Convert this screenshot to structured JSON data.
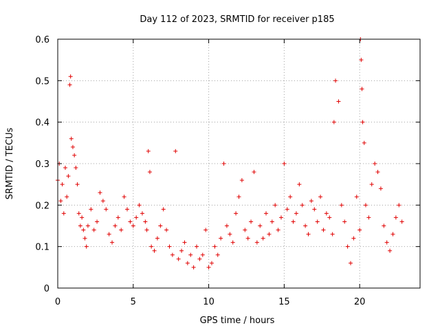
{
  "chart_data": {
    "type": "scatter",
    "title": "Day 112 of 2023, SRMTID for receiver p185",
    "xlabel": "GPS time / hours",
    "ylabel": "SRMTID / TECUs",
    "xlim": [
      0,
      24
    ],
    "ylim": [
      0,
      0.6
    ],
    "xticks": [
      0,
      5,
      10,
      15,
      20
    ],
    "yticks": [
      0,
      0.1,
      0.2,
      0.3,
      0.4,
      0.5,
      0.6
    ],
    "xtick_labels": [
      "0",
      "5",
      "10",
      "15",
      "20"
    ],
    "ytick_labels": [
      "0",
      "0.1",
      "0.2",
      "0.3",
      "0.4",
      "0.5",
      "0.6"
    ],
    "grid": true,
    "marker": "+",
    "color": "#e00000",
    "series": [
      {
        "name": "SRMTID",
        "x": [
          0.0,
          0.1,
          0.2,
          0.3,
          0.4,
          0.5,
          0.6,
          0.7,
          0.8,
          0.85,
          0.9,
          1.0,
          1.1,
          1.2,
          1.3,
          1.4,
          1.5,
          1.6,
          1.7,
          1.8,
          1.9,
          2.0,
          2.2,
          2.4,
          2.6,
          2.8,
          3.0,
          3.2,
          3.4,
          3.6,
          3.8,
          4.0,
          4.2,
          4.4,
          4.6,
          4.8,
          5.0,
          5.2,
          5.4,
          5.6,
          5.8,
          5.9,
          6.0,
          6.1,
          6.2,
          6.4,
          6.6,
          6.8,
          7.0,
          7.2,
          7.4,
          7.6,
          7.8,
          8.0,
          8.2,
          8.4,
          8.6,
          8.8,
          9.0,
          9.2,
          9.4,
          9.6,
          9.8,
          10.0,
          10.2,
          10.4,
          10.6,
          10.8,
          11.0,
          11.2,
          11.4,
          11.6,
          11.8,
          12.0,
          12.2,
          12.4,
          12.6,
          12.8,
          13.0,
          13.2,
          13.4,
          13.6,
          13.8,
          14.0,
          14.2,
          14.4,
          14.6,
          14.8,
          15.0,
          15.2,
          15.4,
          15.6,
          15.8,
          16.0,
          16.2,
          16.4,
          16.6,
          16.8,
          17.0,
          17.2,
          17.4,
          17.6,
          17.8,
          18.0,
          18.2,
          18.3,
          18.4,
          18.6,
          18.8,
          19.0,
          19.2,
          19.4,
          19.6,
          19.8,
          20.0,
          20.05,
          20.1,
          20.15,
          20.2,
          20.3,
          20.4,
          20.6,
          20.8,
          21.0,
          21.2,
          21.4,
          21.6,
          21.8,
          22.0,
          22.2,
          22.4,
          22.6,
          22.8
        ],
        "y": [
          0.26,
          0.3,
          0.21,
          0.25,
          0.18,
          0.29,
          0.22,
          0.27,
          0.49,
          0.51,
          0.36,
          0.34,
          0.32,
          0.29,
          0.25,
          0.18,
          0.15,
          0.17,
          0.14,
          0.12,
          0.1,
          0.15,
          0.19,
          0.14,
          0.16,
          0.23,
          0.21,
          0.19,
          0.13,
          0.11,
          0.15,
          0.17,
          0.14,
          0.22,
          0.19,
          0.16,
          0.15,
          0.17,
          0.2,
          0.18,
          0.16,
          0.14,
          0.33,
          0.28,
          0.1,
          0.09,
          0.12,
          0.15,
          0.19,
          0.14,
          0.1,
          0.08,
          0.33,
          0.07,
          0.09,
          0.11,
          0.06,
          0.08,
          0.05,
          0.1,
          0.07,
          0.08,
          0.14,
          0.05,
          0.06,
          0.1,
          0.08,
          0.12,
          0.3,
          0.15,
          0.13,
          0.11,
          0.18,
          0.22,
          0.26,
          0.14,
          0.12,
          0.16,
          0.28,
          0.11,
          0.15,
          0.12,
          0.18,
          0.13,
          0.16,
          0.2,
          0.14,
          0.17,
          0.3,
          0.19,
          0.22,
          0.16,
          0.18,
          0.25,
          0.2,
          0.15,
          0.13,
          0.21,
          0.19,
          0.16,
          0.22,
          0.14,
          0.18,
          0.17,
          0.13,
          0.4,
          0.5,
          0.45,
          0.2,
          0.16,
          0.1,
          0.06,
          0.12,
          0.22,
          0.14,
          0.6,
          0.55,
          0.48,
          0.4,
          0.35,
          0.2,
          0.17,
          0.25,
          0.3,
          0.28,
          0.24,
          0.15,
          0.11,
          0.09,
          0.13,
          0.17,
          0.2,
          0.16
        ]
      }
    ]
  }
}
